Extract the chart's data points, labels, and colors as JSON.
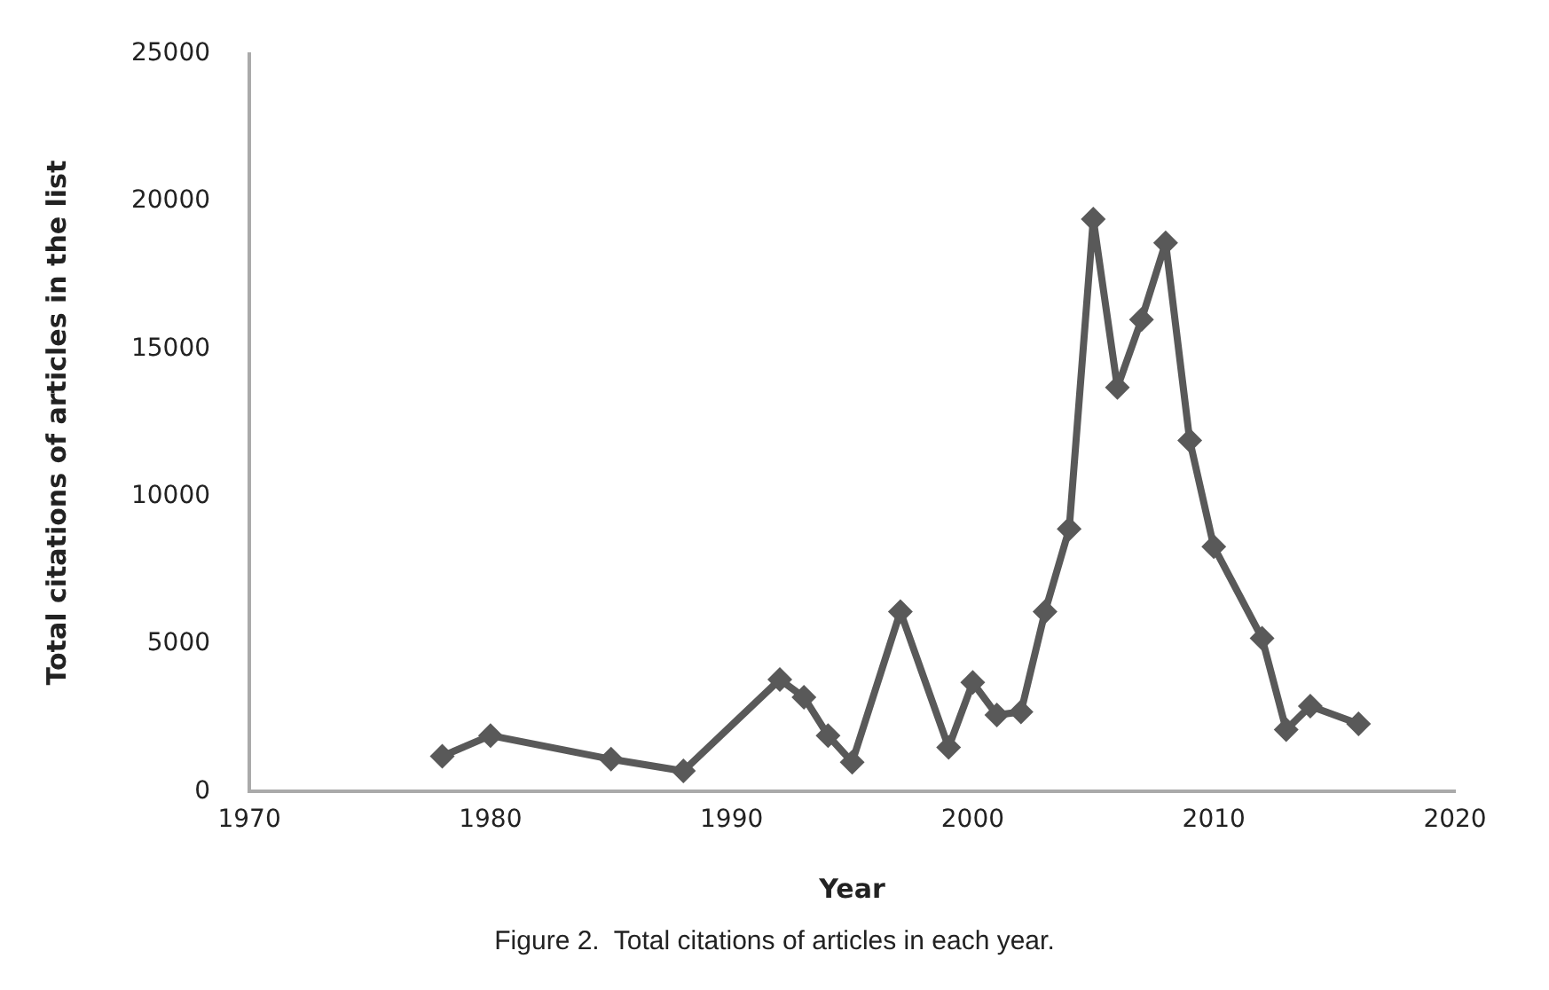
{
  "chart_data": {
    "type": "line",
    "xlabel": "Year",
    "ylabel": "Total citations of articles in the list",
    "x": [
      1978,
      1980,
      1985,
      1988,
      1992,
      1993,
      1994,
      1995,
      1997,
      1999,
      2000,
      2001,
      2002,
      2003,
      2004,
      2005,
      2006,
      2007,
      2008,
      2009,
      2010,
      2012,
      2013,
      2014,
      2016
    ],
    "series": [
      {
        "color": "#595959",
        "values": [
          1200,
          1900,
          1100,
          700,
          3800,
          3200,
          1900,
          1000,
          6100,
          1500,
          3700,
          2600,
          2700,
          6100,
          8900,
          19400,
          13700,
          16000,
          18600,
          11900,
          8300,
          5200,
          2100,
          2900,
          2300
        ]
      }
    ],
    "xlim": [
      1970,
      2020
    ],
    "xticks": [
      1970,
      1980,
      1990,
      2000,
      2010,
      2020
    ],
    "ylim": [
      0,
      25000
    ],
    "yticks": [
      0,
      5000,
      10000,
      15000,
      20000,
      25000
    ],
    "grid": false,
    "legend": false,
    "marker": "diamond",
    "line_style": "solid",
    "annotations": [
      "Figure 2.  Total citations of articles in each year."
    ]
  }
}
